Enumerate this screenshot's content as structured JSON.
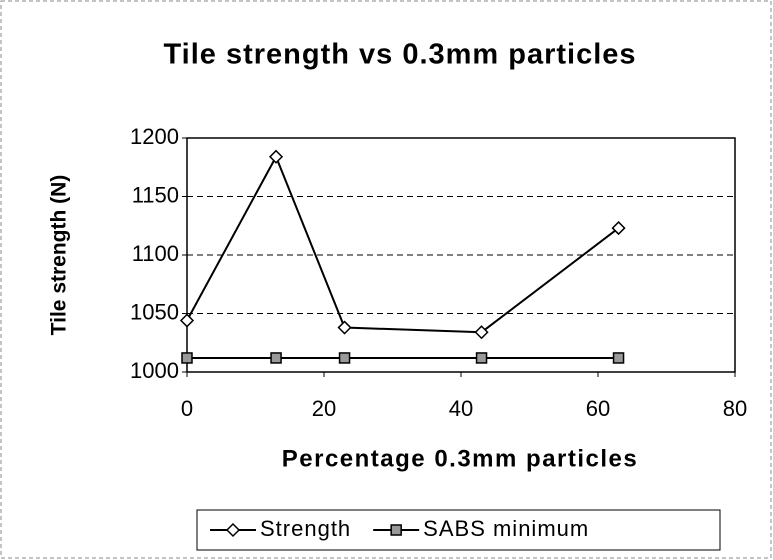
{
  "chart_data": {
    "type": "line",
    "title": "Tile strength vs 0.3mm particles",
    "x_label": "Percentage 0.3mm particles",
    "y_label": "Tile strength (N)",
    "x": [
      0,
      13,
      23,
      43,
      63
    ],
    "series": [
      {
        "name": "Strength",
        "color": "#000000",
        "marker": "diamond",
        "values": [
          1044,
          1184,
          1038,
          1034,
          1123
        ]
      },
      {
        "name": "SABS minimum",
        "color": "#000000",
        "marker": "square",
        "values": [
          1012,
          1012,
          1012,
          1012,
          1012
        ]
      }
    ],
    "xlim": [
      0,
      80
    ],
    "xticks": [
      0,
      20,
      40,
      60,
      80
    ],
    "ylim": [
      1000,
      1200
    ],
    "yticks": [
      1000,
      1050,
      1100,
      1150,
      1200
    ],
    "grid": true,
    "legend": "bottom"
  }
}
